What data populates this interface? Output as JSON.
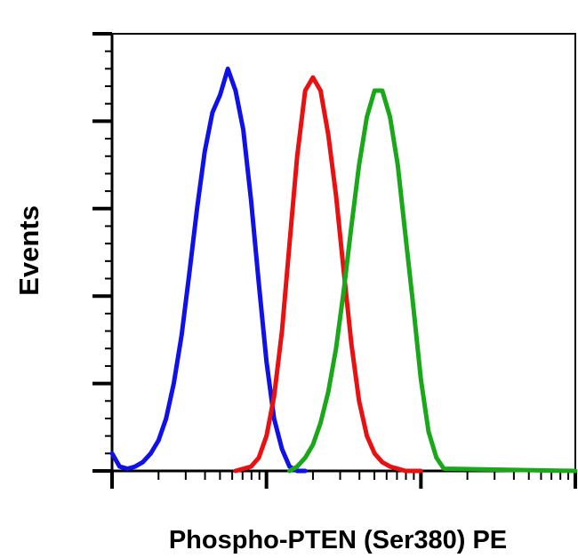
{
  "chart_data": {
    "type": "line",
    "title": "",
    "xlabel": "Phospho-PTEN (Ser380) PE",
    "ylabel": "Events",
    "x_scale": "log",
    "xlim": [
      1,
      1000
    ],
    "ylim": [
      0,
      100
    ],
    "grid": false,
    "legend": "none",
    "series": [
      {
        "color": "#1010e8",
        "x": [
          1.0,
          1.12,
          1.26,
          1.41,
          1.58,
          1.78,
          2.0,
          2.24,
          2.51,
          2.82,
          3.16,
          3.55,
          3.98,
          4.47,
          5.01,
          5.62,
          6.31,
          7.08,
          7.94,
          8.91,
          10.0,
          11.2,
          12.6,
          14.1,
          15.8,
          17.8
        ],
        "y": [
          4,
          1,
          0.5,
          1,
          2,
          4,
          7,
          12,
          20,
          31,
          45,
          60,
          73,
          82,
          86,
          92,
          87,
          78,
          62,
          43,
          25,
          12,
          5,
          1,
          0,
          0
        ]
      },
      {
        "color": "#e81010",
        "x": [
          6.31,
          7.94,
          8.91,
          10.0,
          11.2,
          12.6,
          14.1,
          15.8,
          17.8,
          20.0,
          22.4,
          25.1,
          28.2,
          31.6,
          35.5,
          39.8,
          44.7,
          50.1,
          56.2,
          63.1,
          70.8,
          79.4,
          100.0
        ],
        "y": [
          0,
          1,
          3,
          8,
          17,
          32,
          52,
          72,
          87,
          90,
          87,
          77,
          63,
          46,
          29,
          16,
          8,
          4,
          2,
          1,
          0.5,
          0,
          0
        ]
      },
      {
        "color": "#1aa81a",
        "x": [
          14.1,
          15.8,
          17.8,
          20.0,
          22.4,
          25.1,
          28.2,
          31.6,
          35.5,
          39.8,
          44.7,
          50.1,
          56.2,
          63.1,
          70.8,
          79.4,
          89.1,
          100.0,
          112.0,
          126.0,
          141.0,
          1000.0
        ],
        "y": [
          0,
          1,
          3,
          6,
          11,
          18,
          28,
          41,
          56,
          70,
          81,
          87,
          87,
          81,
          70,
          54,
          38,
          21,
          9,
          3,
          0.5,
          0
        ]
      }
    ]
  }
}
